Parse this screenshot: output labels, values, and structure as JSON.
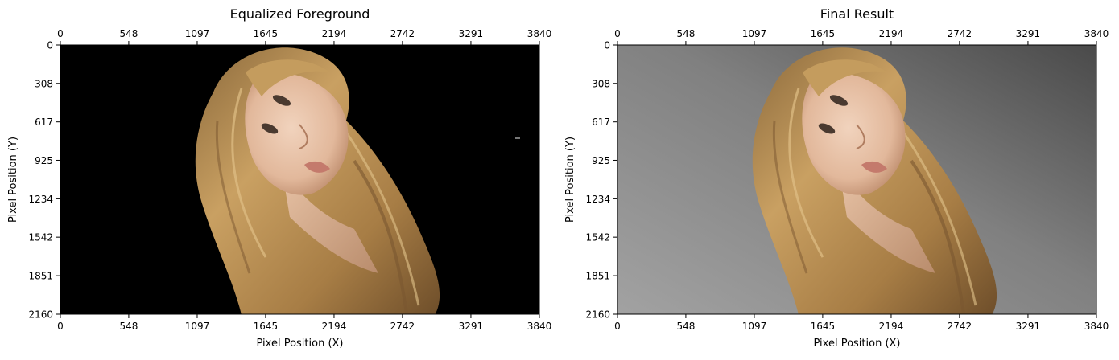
{
  "chart_data": [
    {
      "type": "image",
      "title": "Equalized Foreground",
      "xlabel": "Pixel Position (X)",
      "ylabel": "Pixel Position (Y)",
      "x_ticks": [
        0,
        548,
        1097,
        1645,
        2194,
        2742,
        3291,
        3840
      ],
      "y_ticks": [
        0,
        308,
        617,
        925,
        1234,
        1542,
        1851,
        2160
      ],
      "xlim": [
        0,
        3840
      ],
      "ylim": [
        2160,
        0
      ],
      "tick_labels_top_and_bottom": true,
      "background": "#000000",
      "image_content": "portrait-photo-foreground-on-black"
    },
    {
      "type": "image",
      "title": "Final Result",
      "xlabel": "Pixel Position (X)",
      "ylabel": "Pixel Position (Y)",
      "x_ticks": [
        0,
        548,
        1097,
        1645,
        2194,
        2742,
        3291,
        3840
      ],
      "y_ticks": [
        0,
        308,
        617,
        925,
        1234,
        1542,
        1851,
        2160
      ],
      "xlim": [
        0,
        3840
      ],
      "ylim": [
        2160,
        0
      ],
      "tick_labels_top_and_bottom": true,
      "background": "#7a7a7a",
      "image_content": "portrait-photo-on-gray-studio-backdrop"
    }
  ],
  "colors": {
    "axis": "#000000",
    "text": "#000000",
    "hair_dark": "#6b4a26",
    "hair_mid": "#b08850",
    "hair_light": "#d9b77c",
    "skin": "#e8c2a6",
    "skin_shadow": "#c99a7c",
    "backdrop_light": "#9a9a9a",
    "backdrop_dark": "#4e4e4e"
  }
}
